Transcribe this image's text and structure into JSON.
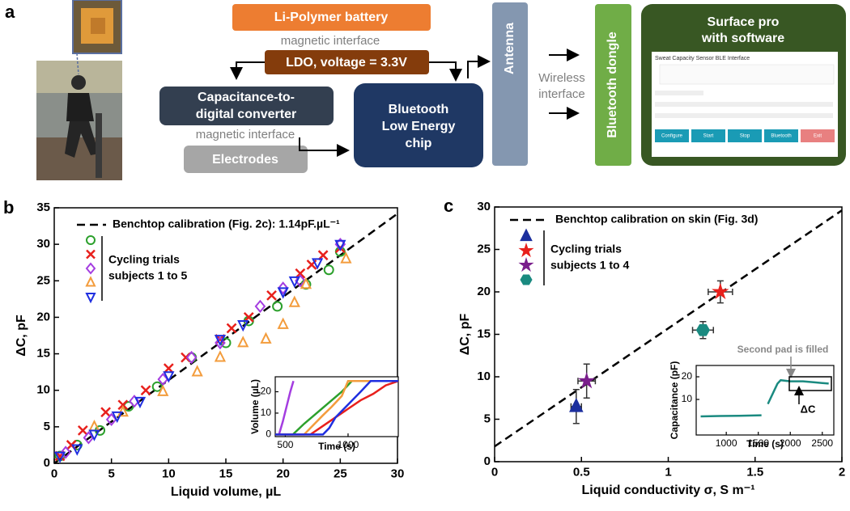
{
  "panel_labels": [
    "a",
    "b",
    "c"
  ],
  "diagram": {
    "battery": "Li-Polymer battery",
    "interface_top": "magnetic interface",
    "ldo": "LDO, voltage = 3.3V",
    "cdc": [
      "Capacitance-to-",
      "digital converter"
    ],
    "interface_bottom": "magnetic interface",
    "electrodes": "Electrodes",
    "ble": [
      "Bluetooth",
      "Low Energy",
      "chip"
    ],
    "antenna": "Antenna",
    "wireless": [
      "Wireless",
      "interface"
    ],
    "dongle": "Bluetooth dongle",
    "surface": [
      "Surface pro",
      "with software"
    ],
    "software": {
      "title": "Sweat Capacity Sensor BLE Interface",
      "buttons": [
        "Configure",
        "Start",
        "Stop",
        "Bluetooth",
        "Exit"
      ]
    }
  },
  "chart_data": [
    {
      "type": "scatter",
      "x_label": "Liquid volume, µL",
      "y_label": "ΔC, pF",
      "xlim": [
        0,
        30
      ],
      "ylim": [
        0,
        35
      ],
      "xticks": [
        0,
        5,
        10,
        15,
        20,
        25,
        30
      ],
      "yticks": [
        0,
        5,
        10,
        15,
        20,
        25,
        30,
        35
      ],
      "hollow": true,
      "fit": {
        "name": "Benchtop calibration (Fig. 2c): 1.14pF.µL⁻¹",
        "x": [
          0,
          30
        ],
        "y": [
          0,
          34.2
        ],
        "color": "#000000"
      },
      "legend_text": [
        "Cycling trials",
        "subjects 1 to 5"
      ],
      "series": [
        {
          "color": "#2ca02c",
          "marker": "circle",
          "x": [
            0.5,
            2,
            4,
            6.5,
            9,
            12,
            15,
            17,
            19.5,
            22,
            24,
            25
          ],
          "values": [
            1,
            2.5,
            4.5,
            7.8,
            10.5,
            14.5,
            16.5,
            19.5,
            21.5,
            24.5,
            26.5,
            29
          ]
        },
        {
          "color": "#e8201c",
          "marker": "x",
          "x": [
            0.5,
            1.5,
            2.5,
            4.5,
            6,
            8,
            10,
            11.5,
            14.5,
            15.5,
            17,
            19,
            21.5,
            22.5,
            23.5,
            25
          ],
          "values": [
            1,
            2.5,
            4.5,
            7,
            8,
            10,
            13,
            14.5,
            17,
            18.5,
            20,
            23,
            26,
            27.2,
            28.5,
            29.5
          ]
        },
        {
          "color": "#a43de0",
          "marker": "diamond",
          "x": [
            1,
            3,
            5,
            7,
            9.5,
            12,
            14.5,
            18,
            20,
            21.5,
            25
          ],
          "values": [
            1.5,
            3.5,
            6,
            8.5,
            11.5,
            14.5,
            16.5,
            21.5,
            24,
            25,
            30
          ]
        },
        {
          "color": "#f39c3c",
          "marker": "triangle",
          "x": [
            3.5,
            6,
            9.5,
            12.5,
            14.5,
            16.5,
            18.5,
            20,
            21,
            22,
            25.5
          ],
          "values": [
            5,
            7,
            9.8,
            12.5,
            14.5,
            16.5,
            17,
            19,
            22,
            24.5,
            28
          ]
        },
        {
          "color": "#1f2fe0",
          "marker": "triangle-down",
          "x": [
            0.5,
            2,
            3.5,
            5.5,
            7.5,
            10,
            14.5,
            16.5,
            20,
            21,
            23,
            25
          ],
          "values": [
            1,
            2,
            4,
            6.5,
            8.5,
            12,
            17,
            19,
            23.5,
            25,
            27.5,
            30
          ]
        }
      ],
      "inset": {
        "type": "line",
        "x_label": "Time (s)",
        "y_label": "Volume (µL)",
        "xlim": [
          420,
          1400
        ],
        "ylim": [
          -1,
          27
        ],
        "xticks": [
          500,
          1000
        ],
        "yticks": [
          0,
          10,
          20
        ],
        "series": [
          {
            "color": "#a43de0",
            "x": [
              450,
              480,
              510,
              540,
              565
            ],
            "values": [
              0,
              6,
              13,
              20,
              25
            ]
          },
          {
            "color": "#2ca02c",
            "x": [
              420,
              560,
              650,
              750,
              850,
              950,
              1030,
              1400
            ],
            "values": [
              0,
              0,
              5,
              10,
              15,
              20,
              25,
              25
            ]
          },
          {
            "color": "#f39c3c",
            "x": [
              420,
              650,
              700,
              750,
              800,
              870,
              950,
              1000,
              1400
            ],
            "values": [
              0,
              0,
              3,
              6,
              9,
              13,
              18,
              25,
              25
            ]
          },
          {
            "color": "#e8201c",
            "x": [
              420,
              700,
              800,
              900,
              1000,
              1100,
              1200,
              1300,
              1400
            ],
            "values": [
              0,
              0,
              4,
              8,
              12,
              16,
              19,
              23,
              25
            ]
          },
          {
            "color": "#1f2fe0",
            "x": [
              420,
              800,
              850,
              900,
              1000,
              1100,
              1180,
              1400
            ],
            "values": [
              0,
              0,
              3,
              8,
              14,
              20,
              25,
              25
            ]
          }
        ]
      }
    },
    {
      "type": "scatter",
      "x_label": "Liquid conductivity σ, S m⁻¹",
      "y_label": "ΔC, pF",
      "xlim": [
        0,
        2
      ],
      "ylim": [
        0,
        30
      ],
      "xticks": [
        0,
        0.5,
        1,
        1.5,
        2
      ],
      "yticks": [
        0,
        5,
        10,
        15,
        20,
        25,
        30
      ],
      "hollow": false,
      "fit": {
        "name": "Benchtop calibration on skin (Fig. 3d)",
        "x": [
          0,
          2
        ],
        "y": [
          1.8,
          29.6
        ],
        "color": "#000000"
      },
      "legend_text": [
        "Cycling trials",
        "subjects 1 to 4"
      ],
      "series": [
        {
          "color": "#1c2f9e",
          "marker": "triangle",
          "x": [
            0.47
          ],
          "values": [
            6.5
          ],
          "xerr": [
            0.03
          ],
          "yerr": [
            2
          ]
        },
        {
          "color": "#e8201c",
          "marker": "star",
          "x": [
            1.3
          ],
          "values": [
            20
          ],
          "xerr": [
            0.07
          ],
          "yerr": [
            1.3
          ]
        },
        {
          "color": "#7a1f8c",
          "marker": "star",
          "x": [
            0.53
          ],
          "values": [
            9.5
          ],
          "xerr": [
            0.05
          ],
          "yerr": [
            2
          ]
        },
        {
          "color": "#1a8a80",
          "marker": "hexagon",
          "x": [
            1.2
          ],
          "values": [
            15.5
          ],
          "xerr": [
            0.06
          ],
          "yerr": [
            1
          ]
        }
      ],
      "inset": {
        "type": "line",
        "x_label": "Time (s)",
        "y_label": "Capacitance (pF)",
        "xlim": [
          530,
          2680
        ],
        "ylim": [
          -5.7,
          25
        ],
        "xticks": [
          1000,
          1500,
          2000,
          2500
        ],
        "yticks": [
          10,
          20
        ],
        "annotations": [
          "Second pad is filled",
          "ΔC"
        ],
        "series": [
          {
            "color": "#1a8a80",
            "x": [
              600,
              900,
              1200,
              1550,
              1600,
              1650,
              1700,
              1750,
              1800,
              1850,
              2000,
              2200,
              2400,
              2600
            ],
            "values": [
              2.5,
              2.7,
              2.8,
              3,
              null,
              8,
              11,
              14,
              17,
              18.5,
              18,
              18,
              17.5,
              17
            ]
          }
        ]
      }
    }
  ]
}
